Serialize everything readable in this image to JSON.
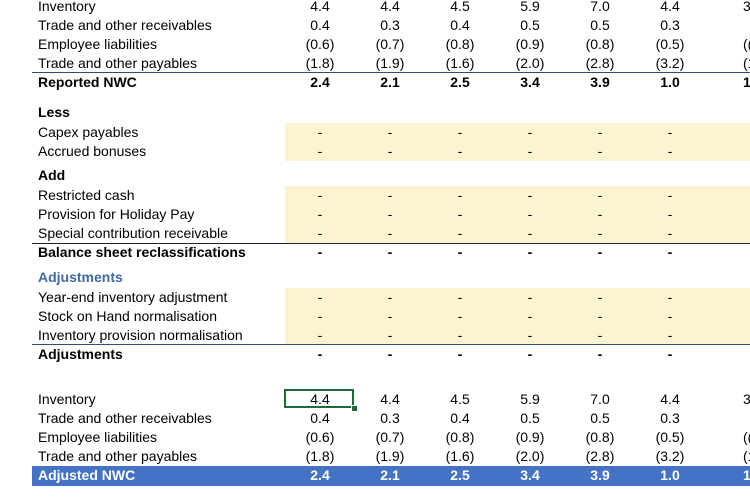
{
  "top": {
    "rows": [
      {
        "label": "Inventory",
        "values": [
          "4.4",
          "4.4",
          "4.5",
          "5.9",
          "7.0",
          "4.4",
          "3"
        ]
      },
      {
        "label": "Trade and other receivables",
        "values": [
          "0.4",
          "0.3",
          "0.4",
          "0.5",
          "0.5",
          "0.3",
          ""
        ]
      },
      {
        "label": "Employee liabilities",
        "values": [
          "(0.6)",
          "(0.7)",
          "(0.8)",
          "(0.9)",
          "(0.8)",
          "(0.5)",
          "(("
        ]
      },
      {
        "label": "Trade and other payables",
        "values": [
          "(1.8)",
          "(1.9)",
          "(1.6)",
          "(2.0)",
          "(2.8)",
          "(3.2)",
          "(1"
        ]
      }
    ],
    "total": {
      "label": "Reported NWC",
      "values": [
        "2.4",
        "2.1",
        "2.5",
        "3.4",
        "3.9",
        "1.0",
        "1"
      ]
    }
  },
  "less": {
    "header": "Less",
    "rows": [
      {
        "label": "Capex payables",
        "values": [
          "-",
          "-",
          "-",
          "-",
          "-",
          "-"
        ]
      },
      {
        "label": "Accrued bonuses",
        "values": [
          "-",
          "-",
          "-",
          "-",
          "-",
          "-"
        ]
      }
    ]
  },
  "add": {
    "header": "Add",
    "rows": [
      {
        "label": "Restricted cash",
        "values": [
          "-",
          "-",
          "-",
          "-",
          "-",
          "-"
        ]
      },
      {
        "label": "Provision for Holiday Pay",
        "values": [
          "-",
          "-",
          "-",
          "-",
          "-",
          "-"
        ]
      },
      {
        "label": "Special contribution receivable",
        "values": [
          "-",
          "-",
          "-",
          "-",
          "-",
          "-"
        ]
      }
    ],
    "total": {
      "label": "Balance sheet reclassifications",
      "values": [
        "-",
        "-",
        "-",
        "-",
        "-",
        "-"
      ]
    }
  },
  "adjustments": {
    "header": "Adjustments",
    "rows": [
      {
        "label": "Year-end inventory adjustment",
        "values": [
          "-",
          "-",
          "-",
          "-",
          "-",
          "-"
        ]
      },
      {
        "label": "Stock on Hand normalisation",
        "values": [
          "-",
          "-",
          "-",
          "-",
          "-",
          "-"
        ]
      },
      {
        "label": "Inventory provision normalisation",
        "values": [
          "-",
          "-",
          "-",
          "-",
          "-",
          "-"
        ]
      }
    ],
    "total": {
      "label": "Adjustments",
      "values": [
        "-",
        "-",
        "-",
        "-",
        "-",
        "-"
      ]
    }
  },
  "bottom": {
    "rows": [
      {
        "label": "Inventory",
        "values": [
          "4.4",
          "4.4",
          "4.5",
          "5.9",
          "7.0",
          "4.4",
          "3"
        ]
      },
      {
        "label": "Trade and other receivables",
        "values": [
          "0.4",
          "0.3",
          "0.4",
          "0.5",
          "0.5",
          "0.3",
          ""
        ]
      },
      {
        "label": "Employee liabilities",
        "values": [
          "(0.6)",
          "(0.7)",
          "(0.8)",
          "(0.9)",
          "(0.8)",
          "(0.5)",
          "(("
        ]
      },
      {
        "label": "Trade and other payables",
        "values": [
          "(1.8)",
          "(1.9)",
          "(1.6)",
          "(2.0)",
          "(2.8)",
          "(3.2)",
          "(1"
        ]
      }
    ],
    "total": {
      "label": "Adjusted NWC",
      "values": [
        "2.4",
        "2.1",
        "2.5",
        "3.4",
        "3.9",
        "1.0",
        "1"
      ]
    }
  }
}
